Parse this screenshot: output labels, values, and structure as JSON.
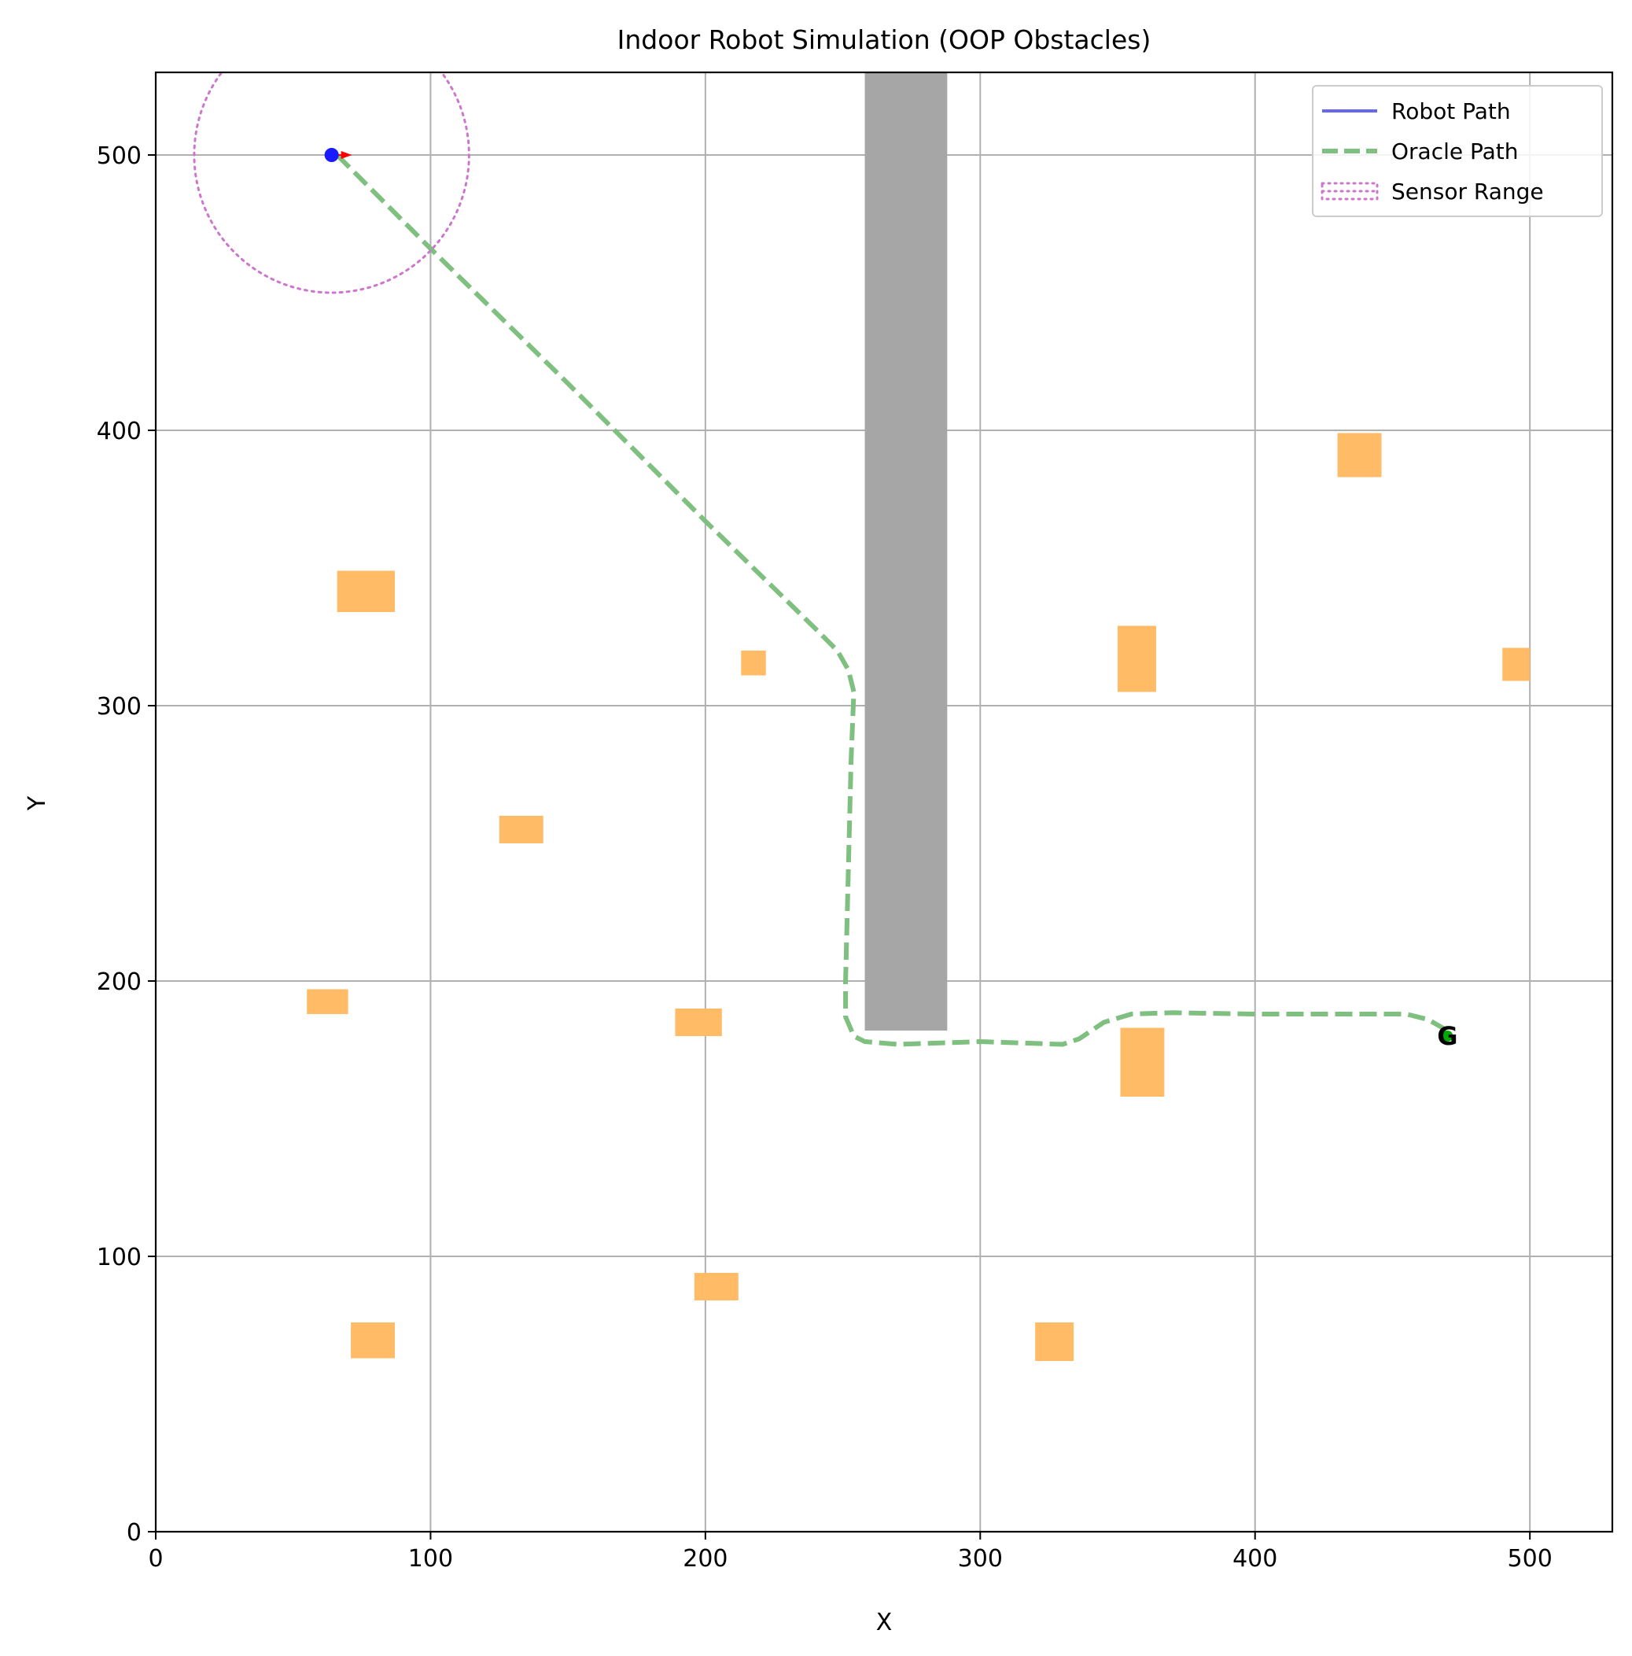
{
  "colors": {
    "robot_path": "#6666ee",
    "oracle_path": "#7fbf7f",
    "sensor": "#cc77cc",
    "obstacle": "#ffbb66",
    "wall": "#a6a6a6",
    "robot": "#1a1aff",
    "heading": "#ff0000",
    "goal": "#00aa00",
    "grid": "#b0b0b0"
  },
  "chart_data": {
    "type": "scatter",
    "title": "Indoor Robot Simulation (OOP Obstacles)",
    "xlabel": "X",
    "ylabel": "Y",
    "xlim": [
      0,
      530
    ],
    "ylim": [
      0,
      530
    ],
    "x_ticks": [
      0,
      100,
      200,
      300,
      400,
      500
    ],
    "y_ticks": [
      0,
      100,
      200,
      300,
      400,
      500
    ],
    "grid": true,
    "legend_placement": "top-right",
    "legend": [
      {
        "label": "Robot Path",
        "style": "solid",
        "key": "robot_path"
      },
      {
        "label": "Oracle Path",
        "style": "dashed",
        "key": "oracle_path"
      },
      {
        "label": "Sensor Range",
        "style": "dotted",
        "key": "sensor"
      }
    ],
    "robot": {
      "x": 64,
      "y": 500,
      "heading_deg": 0
    },
    "robot_path": [
      [
        64,
        500
      ]
    ],
    "sensor_range": {
      "cx": 64,
      "cy": 500,
      "r": 50
    },
    "goal": {
      "x": 470,
      "y": 180,
      "label": "G"
    },
    "wall": {
      "x0": 258,
      "x1": 288,
      "y0": 182,
      "y1": 530
    },
    "obstacles": [
      {
        "x0": 66,
        "x1": 87,
        "y0": 334,
        "y1": 349
      },
      {
        "x0": 213,
        "x1": 222,
        "y0": 311,
        "y1": 320
      },
      {
        "x0": 125,
        "x1": 141,
        "y0": 250,
        "y1": 260
      },
      {
        "x0": 55,
        "x1": 70,
        "y0": 188,
        "y1": 197
      },
      {
        "x0": 189,
        "x1": 206,
        "y0": 180,
        "y1": 190
      },
      {
        "x0": 196,
        "x1": 212,
        "y0": 84,
        "y1": 94
      },
      {
        "x0": 71,
        "x1": 87,
        "y0": 63,
        "y1": 76
      },
      {
        "x0": 320,
        "x1": 334,
        "y0": 62,
        "y1": 76
      },
      {
        "x0": 351,
        "x1": 367,
        "y0": 158,
        "y1": 183
      },
      {
        "x0": 350,
        "x1": 364,
        "y0": 305,
        "y1": 329
      },
      {
        "x0": 430,
        "x1": 446,
        "y0": 383,
        "y1": 399
      },
      {
        "x0": 490,
        "x1": 500,
        "y0": 309,
        "y1": 321
      }
    ],
    "oracle_path": [
      [
        66,
        500
      ],
      [
        100,
        466
      ],
      [
        150,
        417
      ],
      [
        200,
        367
      ],
      [
        240,
        328
      ],
      [
        248,
        320
      ],
      [
        252,
        313
      ],
      [
        254,
        305
      ],
      [
        253,
        280
      ],
      [
        252,
        240
      ],
      [
        251,
        200
      ],
      [
        251,
        187
      ],
      [
        254,
        180
      ],
      [
        258,
        178
      ],
      [
        270,
        177
      ],
      [
        300,
        178
      ],
      [
        330,
        177
      ],
      [
        336,
        179
      ],
      [
        345,
        185
      ],
      [
        355,
        188
      ],
      [
        370,
        188.5
      ],
      [
        400,
        188
      ],
      [
        430,
        188
      ],
      [
        455,
        188
      ],
      [
        463,
        186
      ],
      [
        470,
        182
      ]
    ]
  }
}
